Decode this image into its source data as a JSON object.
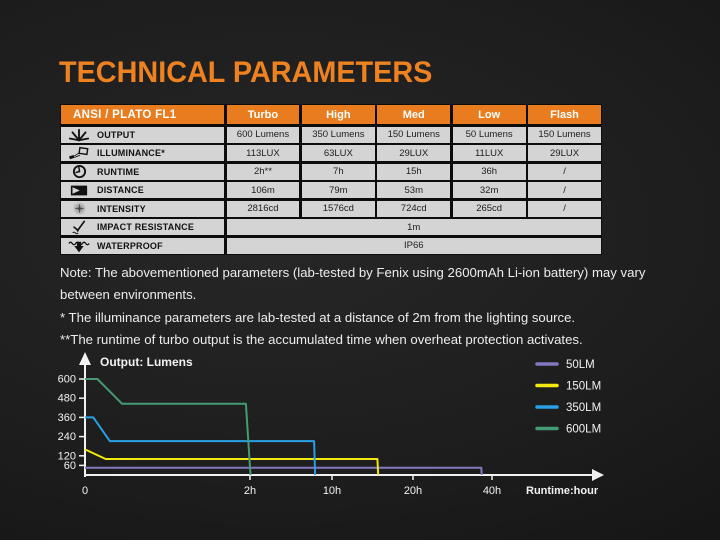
{
  "page": {
    "title": "TECHNICAL PARAMETERS"
  },
  "colors": {
    "accent_orange": "#ee8220",
    "table_header_orange": "#e87c1e",
    "table_cell_gray": "#d4d4d4",
    "text_white": "#ededed",
    "line_50lm": "#8279c0",
    "line_150lm": "#f3e90e",
    "line_350lm": "#29a0e6",
    "line_600lm": "#449c74"
  },
  "table": {
    "header": {
      "first": "ANSI / PLATO FL1",
      "cols": [
        "Turbo",
        "High",
        "Med",
        "Low",
        "Flash"
      ]
    },
    "rows": [
      {
        "icon": "output-icon",
        "label": "OUTPUT",
        "values": [
          "600 Lumens",
          "350 Lumens",
          "150 Lumens",
          "50 Lumens",
          "150 Lumens"
        ]
      },
      {
        "icon": "illuminance-icon",
        "label": "ILLUMINANCE*",
        "values": [
          "113LUX",
          "63LUX",
          "29LUX",
          "11LUX",
          "29LUX"
        ]
      },
      {
        "icon": "runtime-icon",
        "label": "RUNTIME",
        "values": [
          "2h**",
          "7h",
          "15h",
          "36h",
          "/"
        ]
      },
      {
        "icon": "distance-icon",
        "label": "DISTANCE",
        "values": [
          "106m",
          "79m",
          "53m",
          "32m",
          "/"
        ]
      },
      {
        "icon": "intensity-icon",
        "label": "INTENSITY",
        "values": [
          "2816cd",
          "1576cd",
          "724cd",
          "265cd",
          "/"
        ]
      }
    ],
    "span_rows": [
      {
        "icon": "impact-icon",
        "label": "IMPACT RESISTANCE",
        "value": "1m"
      },
      {
        "icon": "waterproof-icon",
        "label": "WATERPROOF",
        "value": "IP66"
      }
    ]
  },
  "notes": [
    "Note: The abovementioned parameters (lab-tested by Fenix using 2600mAh Li-ion battery) may vary between environments.",
    "* The illuminance parameters are lab-tested at a distance of 2m from the lighting source.",
    "**The runtime of turbo output is the accumulated time when overheat protection activates."
  ],
  "chart_data": {
    "type": "line",
    "title": "Output: Lumens",
    "xlabel": "Runtime:hour",
    "x_unit": "hours",
    "y_ticks": [
      600,
      480,
      360,
      240,
      120,
      60
    ],
    "x_ticks": [
      {
        "label": "0",
        "h": 0
      },
      {
        "label": "2h",
        "h": 2
      },
      {
        "label": "10h",
        "h": 10
      },
      {
        "label": "20h",
        "h": 20
      },
      {
        "label": "40h",
        "h": 40
      }
    ],
    "x_scale_note": "non-linear axis: 0-2h stretched, ticks 2h/10h/20h/40h evenly spaced",
    "grid": false,
    "legend_position": "top-right",
    "series": [
      {
        "name": "50LM",
        "color": "#8279c0",
        "points": [
          [
            0,
            45
          ],
          [
            37.3,
            45
          ],
          [
            37.4,
            0
          ]
        ]
      },
      {
        "name": "150LM",
        "color": "#f3e90e",
        "points": [
          [
            0,
            160
          ],
          [
            0.25,
            100
          ],
          [
            15.6,
            100
          ],
          [
            15.7,
            0
          ]
        ]
      },
      {
        "name": "350LM",
        "color": "#29a0e6",
        "points": [
          [
            0,
            360
          ],
          [
            0.1,
            360
          ],
          [
            0.3,
            212
          ],
          [
            8.25,
            212
          ],
          [
            8.35,
            0
          ]
        ]
      },
      {
        "name": "600LM",
        "color": "#449c74",
        "points": [
          [
            0,
            600
          ],
          [
            0.15,
            600
          ],
          [
            0.45,
            445
          ],
          [
            1.95,
            445
          ],
          [
            2.05,
            0
          ]
        ]
      }
    ]
  }
}
